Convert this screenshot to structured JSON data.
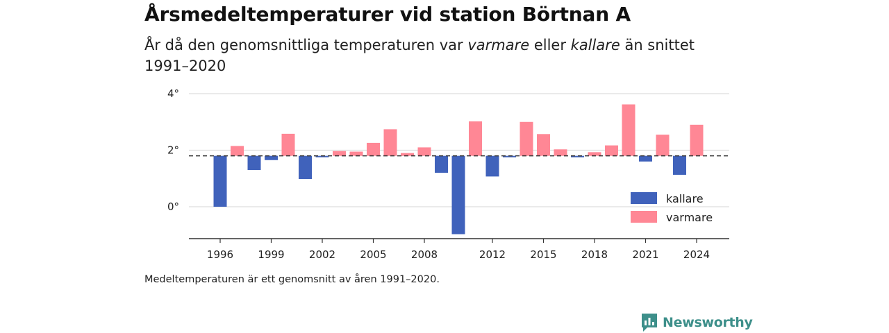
{
  "title": "Årsmedeltemperaturer vid station Börtnan A",
  "subtitle": {
    "part1": "År då den genomsnittliga temperaturen var ",
    "warm_word": "varmare",
    "part2": " eller ",
    "cold_word": "kallare",
    "part3": " än snittet 1991–2020"
  },
  "footnote": "Medeltemperaturen är ett genomsnitt av åren 1991–2020.",
  "logo_text": "Newsworthy",
  "colors": {
    "warmer": "#ff8795",
    "colder": "#4062bb",
    "grid": "#dddddd",
    "axis": "#333333",
    "logo": "#3d8f8a"
  },
  "chart_data": {
    "type": "bar",
    "title": "Årsmedeltemperaturer vid station Börtnan A",
    "xlabel": "",
    "ylabel": "",
    "baseline": 1.8,
    "ylim": [
      -1.1,
      4.3
    ],
    "yticks": [
      0,
      2,
      4
    ],
    "ytick_labels": [
      "0°",
      "2°",
      "4°"
    ],
    "xticks": [
      1996,
      1999,
      2002,
      2005,
      2008,
      2012,
      2015,
      2018,
      2021,
      2024
    ],
    "xlim": [
      1995,
      2025
    ],
    "grid": true,
    "legend": {
      "placement": "bottom-right",
      "entries": [
        {
          "key": "colder",
          "label": "kallare"
        },
        {
          "key": "warmer",
          "label": "varmare"
        }
      ]
    },
    "series": [
      {
        "name": "kallare",
        "key": "colder"
      },
      {
        "name": "varmare",
        "key": "warmer"
      }
    ],
    "years": [
      1996,
      1997,
      1998,
      1999,
      2000,
      2001,
      2002,
      2003,
      2004,
      2005,
      2006,
      2007,
      2008,
      2009,
      2010,
      2011,
      2012,
      2013,
      2014,
      2015,
      2016,
      2017,
      2018,
      2019,
      2020,
      2021,
      2022,
      2023,
      2024
    ],
    "values": [
      0.0,
      2.15,
      1.3,
      1.65,
      2.58,
      0.98,
      1.77,
      1.97,
      1.95,
      2.26,
      2.74,
      1.9,
      2.1,
      1.2,
      -0.97,
      3.02,
      1.07,
      1.75,
      3.0,
      2.57,
      2.03,
      1.75,
      1.93,
      2.17,
      3.62,
      1.6,
      2.55,
      1.13,
      2.9
    ]
  }
}
